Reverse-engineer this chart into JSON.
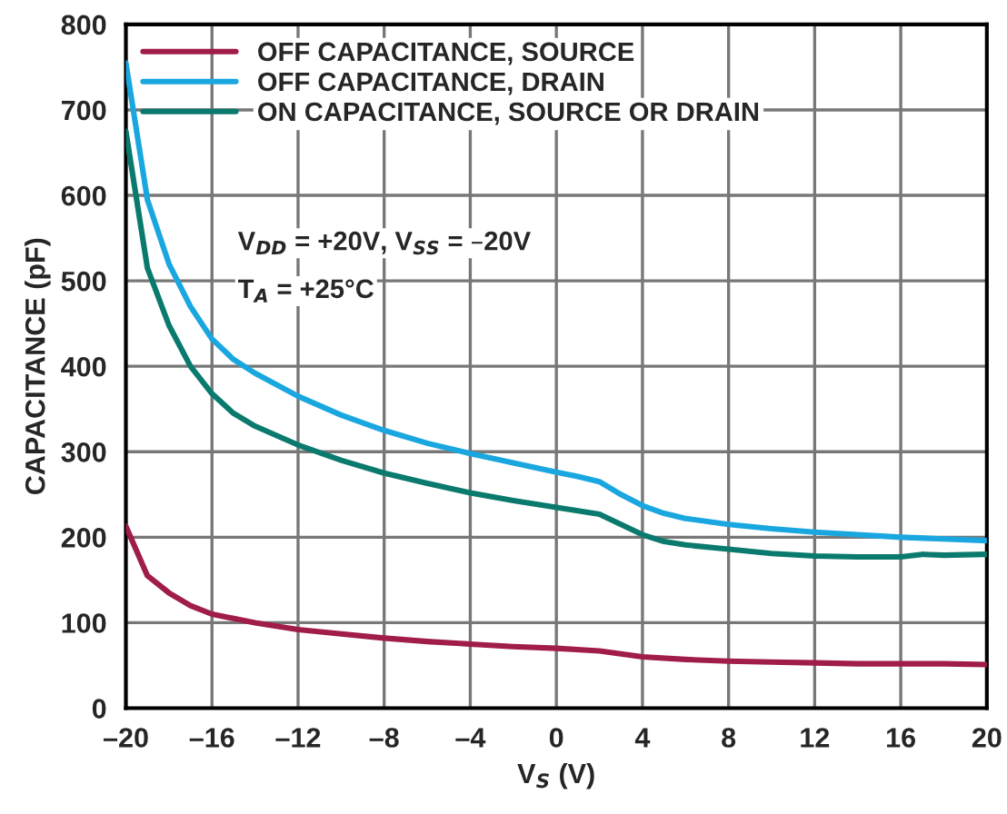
{
  "chart_data": {
    "type": "line",
    "xlabel": "V$_{S}$ (V)",
    "ylabel": "CAPACITANCE (pF)",
    "annotations": [
      "V$_{DD}$ = +20V, V$_{SS}$ = –20V",
      "T$_{A}$ = +25°C"
    ],
    "xlim": [
      -20,
      20
    ],
    "ylim": [
      0,
      800
    ],
    "xticks": [
      {
        "value": -20,
        "label": "–20"
      },
      {
        "value": -16,
        "label": "–16"
      },
      {
        "value": -12,
        "label": "–12"
      },
      {
        "value": -8,
        "label": "–8"
      },
      {
        "value": -4,
        "label": "–4"
      },
      0,
      4,
      8,
      12,
      16,
      20
    ],
    "yticks": [
      0,
      100,
      200,
      300,
      400,
      500,
      600,
      700,
      800
    ],
    "grid": true,
    "legend": "top left",
    "marker": "none",
    "line_style": "solid",
    "series": [
      {
        "name": "OFF CAPACITANCE, SOURCE",
        "color": "#a01c4a",
        "x": [
          -20,
          -19,
          -18,
          -17,
          -16,
          -14,
          -12,
          -10,
          -8,
          -6,
          -4,
          -2,
          0,
          2,
          4,
          6,
          8,
          10,
          12,
          14,
          16,
          18,
          20
        ],
        "values": [
          213,
          155,
          135,
          120,
          110,
          100,
          92,
          87,
          82,
          78,
          75,
          72,
          70,
          67,
          60,
          57,
          55,
          54,
          53,
          52,
          52,
          52,
          51
        ]
      },
      {
        "name": "OFF CAPACITANCE, DRAIN",
        "color": "#1aa7e0",
        "x": [
          -20,
          -19,
          -18,
          -17,
          -16,
          -15,
          -14,
          -12,
          -10,
          -8,
          -6,
          -4,
          -2,
          0,
          1,
          2,
          3,
          4,
          5,
          6,
          8,
          10,
          12,
          14,
          16,
          18,
          20
        ],
        "values": [
          755,
          595,
          520,
          470,
          432,
          408,
          392,
          365,
          343,
          325,
          310,
          298,
          287,
          276,
          271,
          265,
          250,
          237,
          228,
          222,
          215,
          210,
          206,
          203,
          200,
          198,
          196
        ]
      },
      {
        "name": "ON CAPACITANCE, SOURCE OR DRAIN",
        "color": "#0b7a6e",
        "x": [
          -20,
          -19,
          -18,
          -17,
          -16,
          -15,
          -14,
          -12,
          -10,
          -8,
          -6,
          -4,
          -2,
          0,
          1,
          2,
          3,
          4,
          5,
          6,
          8,
          10,
          12,
          14,
          16,
          17,
          18,
          20
        ],
        "values": [
          675,
          515,
          448,
          400,
          368,
          345,
          330,
          308,
          290,
          275,
          263,
          252,
          243,
          235,
          231,
          227,
          215,
          203,
          195,
          191,
          186,
          181,
          178,
          177,
          177,
          180,
          179,
          180
        ]
      }
    ]
  }
}
